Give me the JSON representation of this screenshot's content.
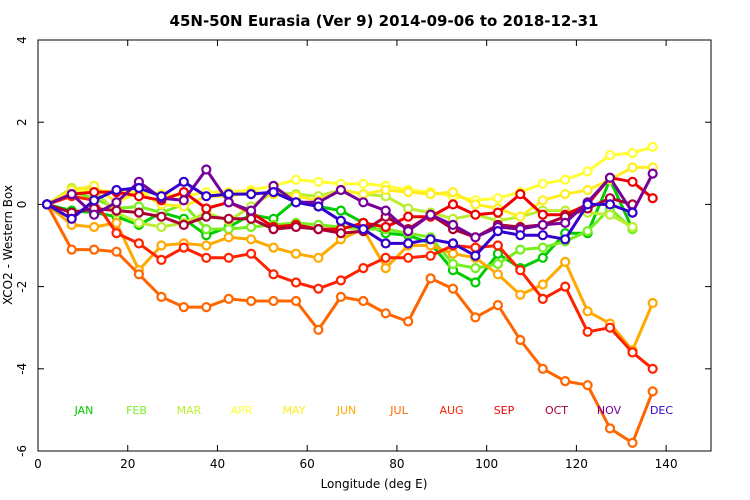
{
  "chart_data": {
    "type": "line",
    "title": "45N-50N Eurasia (Ver 9)   2014-09-06 to 2018-12-31",
    "xlabel": "Longitude (deg E)",
    "ylabel": "XCO2 - Western Box",
    "xlim": [
      0,
      150
    ],
    "ylim": [
      -6,
      4
    ],
    "xticks": [
      0,
      20,
      40,
      60,
      80,
      100,
      120,
      140
    ],
    "yticks": [
      -6,
      -4,
      -2,
      0,
      2,
      4
    ],
    "grid": false,
    "legend_placement": "bottom",
    "month_labels": [
      {
        "text": "JAN",
        "color": "#00cc00"
      },
      {
        "text": "FEB",
        "color": "#77ee22"
      },
      {
        "text": "MAR",
        "color": "#bbee33"
      },
      {
        "text": "APR",
        "color": "#ffff33"
      },
      {
        "text": "MAY",
        "color": "#ffee22"
      },
      {
        "text": "JUN",
        "color": "#ffaa00"
      },
      {
        "text": "JUL",
        "color": "#ff6600"
      },
      {
        "text": "AUG",
        "color": "#ff2200"
      },
      {
        "text": "SEP",
        "color": "#ee0000"
      },
      {
        "text": "OCT",
        "color": "#aa0033"
      },
      {
        "text": "NOV",
        "color": "#770099"
      },
      {
        "text": "DEC",
        "color": "#3300cc"
      }
    ],
    "series": [
      {
        "color": "#00cc00",
        "x": [
          2,
          7.5,
          12.5,
          17.5,
          22.5,
          27.5,
          32.5,
          37.5,
          42.5,
          47.5,
          52.5,
          57.5,
          62.5,
          67.5,
          72.5,
          77.5,
          82.5,
          87.5,
          92.5,
          97.5,
          102.5,
          107.5,
          112.5,
          117.5,
          122.5,
          127.5,
          132.5
        ],
        "y": [
          0,
          -0.15,
          -0.2,
          -0.3,
          -0.5,
          -0.2,
          -0.35,
          -0.75,
          -0.55,
          -0.25,
          -0.35,
          0.1,
          -0.05,
          -0.15,
          -0.45,
          -0.7,
          -0.75,
          -0.95,
          -1.6,
          -1.9,
          -1.2,
          -1.55,
          -1.3,
          -0.7,
          -0.7,
          0.6,
          -0.6
        ]
      },
      {
        "color": "#77ee22",
        "x": [
          2,
          7.5,
          12.5,
          17.5,
          22.5,
          27.5,
          32.5,
          37.5,
          42.5,
          47.5,
          52.5,
          57.5,
          62.5,
          67.5,
          72.5,
          77.5,
          82.5,
          87.5,
          92.5,
          97.5,
          102.5,
          107.5,
          112.5,
          117.5,
          122.5,
          127.5,
          132.5
        ],
        "y": [
          0,
          0.3,
          0.15,
          -0.1,
          -0.05,
          -0.2,
          0.0,
          -0.6,
          -0.6,
          -0.55,
          -0.5,
          -0.45,
          -0.5,
          -0.55,
          -0.6,
          -0.6,
          -0.7,
          -0.8,
          -1.45,
          -1.55,
          -1.45,
          -1.1,
          -1.05,
          -0.9,
          -0.65,
          -0.1,
          -0.6
        ]
      },
      {
        "color": "#bbee33",
        "x": [
          2,
          7.5,
          12.5,
          17.5,
          22.5,
          27.5,
          32.5,
          37.5,
          42.5,
          47.5,
          52.5,
          57.5,
          62.5,
          67.5,
          72.5,
          77.5,
          82.5,
          87.5,
          92.5,
          97.5,
          102.5,
          107.5,
          112.5,
          117.5,
          122.5,
          127.5,
          132.5
        ],
        "y": [
          0,
          0.4,
          0.35,
          -0.2,
          -0.45,
          -0.55,
          -0.45,
          -0.2,
          -0.4,
          -0.05,
          0.3,
          0.25,
          0.2,
          0.35,
          0.25,
          0.2,
          -0.1,
          -0.2,
          -0.35,
          -0.25,
          -0.4,
          -0.3,
          -0.15,
          -0.15,
          -0.2,
          -0.25,
          -0.55
        ]
      },
      {
        "color": "#ffff33",
        "x": [
          2,
          7.5,
          12.5,
          17.5,
          22.5,
          27.5,
          32.5,
          37.5,
          42.5,
          47.5,
          52.5,
          57.5,
          62.5,
          67.5,
          72.5,
          77.5,
          82.5,
          87.5,
          92.5,
          97.5,
          102.5,
          107.5,
          112.5,
          117.5,
          122.5,
          127.5,
          132.5,
          137
        ],
        "y": [
          0,
          0.3,
          0.35,
          0.3,
          0.3,
          0.25,
          0.2,
          0.3,
          0.3,
          0.35,
          0.45,
          0.6,
          0.55,
          0.5,
          0.5,
          0.45,
          0.35,
          0.3,
          0.2,
          0.1,
          0.15,
          0.3,
          0.5,
          0.6,
          0.8,
          1.2,
          1.25,
          1.4
        ]
      },
      {
        "color": "#ffee22",
        "x": [
          2,
          7.5,
          12.5,
          17.5,
          22.5,
          27.5,
          32.5,
          37.5,
          42.5,
          47.5,
          52.5,
          57.5,
          62.5,
          67.5,
          72.5,
          77.5,
          82.5,
          87.5,
          92.5,
          97.5,
          102.5,
          107.5,
          112.5,
          117.5,
          122.5,
          127.5,
          132.5,
          137
        ],
        "y": [
          0,
          0.35,
          0.45,
          0.05,
          0.3,
          0.0,
          -0.05,
          0.2,
          0.2,
          0.3,
          0.25,
          0.2,
          0.1,
          0.35,
          0.25,
          0.35,
          0.3,
          0.25,
          0.3,
          0.0,
          -0.1,
          -0.3,
          0.1,
          0.25,
          0.35,
          0.6,
          0.9,
          0.9
        ]
      },
      {
        "color": "#ffaa00",
        "x": [
          2,
          7.5,
          12.5,
          17.5,
          22.5,
          27.5,
          32.5,
          37.5,
          42.5,
          47.5,
          52.5,
          57.5,
          62.5,
          67.5,
          72.5,
          77.5,
          82.5,
          87.5,
          92.5,
          97.5,
          102.5,
          107.5,
          112.5,
          117.5,
          122.5,
          127.5,
          132.5,
          137
        ],
        "y": [
          0,
          -0.5,
          -0.55,
          -0.45,
          -1.6,
          -1.0,
          -0.95,
          -1.0,
          -0.8,
          -0.85,
          -1.05,
          -1.2,
          -1.3,
          -0.85,
          -0.6,
          -1.55,
          -1.0,
          -1.0,
          -1.2,
          -1.3,
          -1.7,
          -2.2,
          -1.95,
          -1.4,
          -2.6,
          -2.9,
          -3.55,
          -2.4
        ]
      },
      {
        "color": "#ff6600",
        "x": [
          2,
          7.5,
          12.5,
          17.5,
          22.5,
          27.5,
          32.5,
          37.5,
          42.5,
          47.5,
          52.5,
          57.5,
          62.5,
          67.5,
          72.5,
          77.5,
          82.5,
          87.5,
          92.5,
          97.5,
          102.5,
          107.5,
          112.5,
          117.5,
          122.5,
          127.5,
          132.5,
          137
        ],
        "y": [
          0,
          -1.1,
          -1.1,
          -1.15,
          -1.7,
          -2.25,
          -2.5,
          -2.5,
          -2.3,
          -2.35,
          -2.35,
          -2.35,
          -3.05,
          -2.25,
          -2.35,
          -2.65,
          -2.85,
          -1.8,
          -2.05,
          -2.75,
          -2.45,
          -3.3,
          -4.0,
          -4.3,
          -4.4,
          -5.45,
          -5.8,
          -4.55
        ]
      },
      {
        "color": "#ff2200",
        "x": [
          2,
          7.5,
          12.5,
          17.5,
          22.5,
          27.5,
          32.5,
          37.5,
          42.5,
          47.5,
          52.5,
          57.5,
          62.5,
          67.5,
          72.5,
          77.5,
          82.5,
          87.5,
          92.5,
          97.5,
          102.5,
          107.5,
          112.5,
          117.5,
          122.5,
          127.5,
          132.5,
          137
        ],
        "y": [
          0,
          0.2,
          0.1,
          -0.7,
          -0.95,
          -1.35,
          -1.05,
          -1.3,
          -1.3,
          -1.2,
          -1.7,
          -1.9,
          -2.05,
          -1.85,
          -1.55,
          -1.3,
          -1.3,
          -1.25,
          -1.0,
          -1.05,
          -1.0,
          -1.6,
          -2.3,
          -2.0,
          -3.1,
          -3.0,
          -3.6,
          -4.0
        ]
      },
      {
        "color": "#ee0000",
        "x": [
          2,
          7.5,
          12.5,
          17.5,
          22.5,
          27.5,
          32.5,
          37.5,
          42.5,
          47.5,
          52.5,
          57.5,
          62.5,
          67.5,
          72.5,
          77.5,
          82.5,
          87.5,
          92.5,
          97.5,
          102.5,
          107.5,
          112.5,
          117.5,
          122.5,
          127.5,
          132.5,
          137
        ],
        "y": [
          0,
          0.25,
          0.3,
          0.3,
          0.2,
          0.1,
          0.3,
          -0.1,
          0.05,
          -0.2,
          -0.55,
          -0.5,
          -0.6,
          -0.6,
          -0.45,
          -0.55,
          -0.3,
          -0.3,
          0.0,
          -0.25,
          -0.2,
          0.25,
          -0.25,
          -0.25,
          0.0,
          0.65,
          0.55,
          0.15
        ]
      },
      {
        "color": "#aa0033",
        "x": [
          2,
          7.5,
          12.5,
          17.5,
          22.5,
          27.5,
          32.5,
          37.5,
          42.5,
          47.5,
          52.5,
          57.5,
          62.5,
          67.5,
          72.5,
          77.5,
          82.5,
          87.5,
          92.5,
          97.5,
          102.5,
          107.5,
          112.5,
          117.5,
          122.5,
          127.5,
          132.5
        ],
        "y": [
          0,
          -0.2,
          -0.1,
          -0.15,
          -0.2,
          -0.3,
          -0.5,
          -0.3,
          -0.35,
          -0.35,
          -0.6,
          -0.55,
          -0.6,
          -0.7,
          -0.65,
          -0.3,
          -0.6,
          -0.25,
          -0.6,
          -0.8,
          -0.5,
          -0.55,
          -0.5,
          -0.3,
          -0.1,
          0.15,
          0.0
        ]
      },
      {
        "color": "#770099",
        "x": [
          2,
          7.5,
          12.5,
          17.5,
          22.5,
          27.5,
          32.5,
          37.5,
          42.5,
          47.5,
          52.5,
          57.5,
          62.5,
          67.5,
          72.5,
          77.5,
          82.5,
          87.5,
          92.5,
          97.5,
          102.5,
          107.5,
          112.5,
          117.5,
          122.5,
          127.5,
          132.5,
          137
        ],
        "y": [
          0,
          0.25,
          -0.25,
          0.05,
          0.55,
          0.15,
          0.1,
          0.85,
          0.05,
          -0.15,
          0.45,
          0.05,
          0.05,
          0.35,
          0.05,
          -0.15,
          -0.65,
          -0.25,
          -0.5,
          -0.8,
          -0.55,
          -0.6,
          -0.5,
          -0.45,
          0.05,
          0.65,
          -0.2,
          0.75
        ]
      },
      {
        "color": "#3300cc",
        "x": [
          2,
          7.5,
          12.5,
          17.5,
          22.5,
          27.5,
          32.5,
          37.5,
          42.5,
          47.5,
          52.5,
          57.5,
          62.5,
          67.5,
          72.5,
          77.5,
          82.5,
          87.5,
          92.5,
          97.5,
          102.5,
          107.5,
          112.5,
          117.5,
          122.5,
          127.5,
          132.5
        ],
        "y": [
          0,
          -0.35,
          0.1,
          0.35,
          0.4,
          0.2,
          0.55,
          0.2,
          0.25,
          0.25,
          0.3,
          0.05,
          -0.05,
          -0.4,
          -0.6,
          -0.95,
          -0.95,
          -0.85,
          -0.95,
          -1.25,
          -0.65,
          -0.75,
          -0.75,
          -0.85,
          0.0,
          0.0,
          -0.2
        ]
      }
    ]
  }
}
